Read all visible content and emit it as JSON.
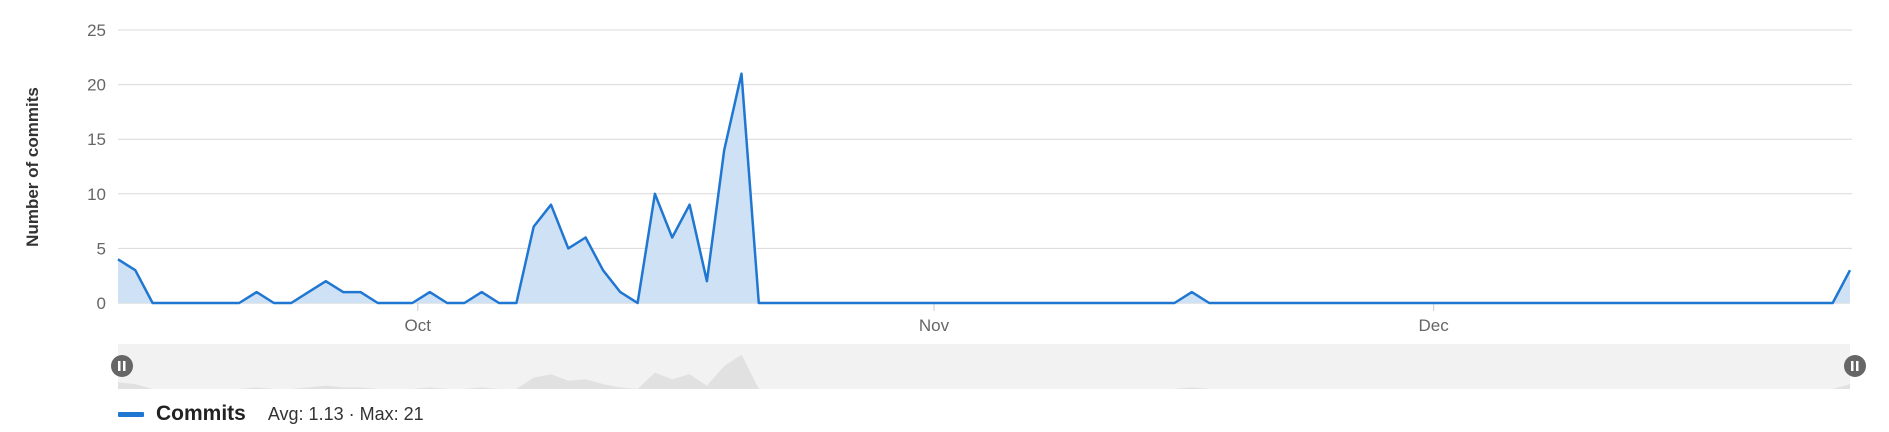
{
  "chart_data": {
    "type": "area",
    "ylabel": "Number of commits",
    "xlabel": "",
    "ylim": [
      0,
      25
    ],
    "yticks": [
      0,
      5,
      10,
      15,
      20,
      25
    ],
    "x_start": "2023-09-13",
    "x_end": "2023-12-26",
    "x_ticks": [
      {
        "label": "Oct",
        "date": "2023-10-01"
      },
      {
        "label": "Nov",
        "date": "2023-11-01"
      },
      {
        "label": "Dec",
        "date": "2023-12-01"
      }
    ],
    "grid": true,
    "series": [
      {
        "name": "Commits",
        "color": "#1f77d1",
        "fill": "#cfe1f5",
        "values": [
          4,
          3,
          0,
          0,
          0,
          0,
          0,
          0,
          1,
          0,
          0,
          1,
          2,
          1,
          1,
          0,
          0,
          0,
          1,
          0,
          0,
          1,
          0,
          0,
          7,
          9,
          5,
          6,
          3,
          1,
          0,
          10,
          6,
          9,
          2,
          14,
          21,
          0,
          0,
          0,
          0,
          0,
          0,
          0,
          0,
          0,
          0,
          0,
          0,
          0,
          0,
          0,
          0,
          0,
          0,
          0,
          0,
          0,
          0,
          0,
          0,
          0,
          1,
          0,
          0,
          0,
          0,
          0,
          0,
          0,
          0,
          0,
          0,
          0,
          0,
          0,
          0,
          0,
          0,
          0,
          0,
          0,
          0,
          0,
          0,
          0,
          0,
          0,
          0,
          0,
          0,
          0,
          0,
          0,
          0,
          0,
          0,
          0,
          0,
          0,
          3
        ]
      }
    ],
    "legend": {
      "placement": "bottom-left",
      "name": "Commits",
      "stats": "Avg: 1.13 · Max: 21"
    }
  }
}
